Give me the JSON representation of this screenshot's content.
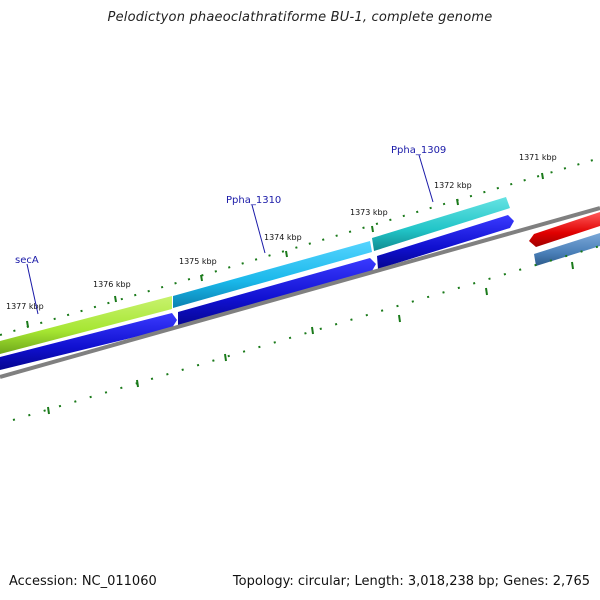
{
  "title": "Pelodictyon phaeoclathratiforme BU-1, complete genome",
  "footer": {
    "accession": "Accession: NC_011060",
    "summary": "Topology: circular; Length: 3,018,238 bp; Genes: 2,765"
  },
  "ruler": [
    "1377 kbp",
    "1376 kbp",
    "1375 kbp",
    "1374 kbp",
    "1373 kbp",
    "1372 kbp",
    "1371 kbp"
  ],
  "genes": [
    {
      "name": "secA",
      "color": "#a6e632"
    },
    {
      "name": "Ppha_1310",
      "color": "#1ab8ea"
    },
    {
      "name": "Ppha_1309",
      "color": "#22c5c8"
    },
    {
      "name": "",
      "color": "#e00000"
    }
  ],
  "cds_color": "#1010d0",
  "backbone_color": "#808080",
  "tick_color": "#1a7a1a"
}
